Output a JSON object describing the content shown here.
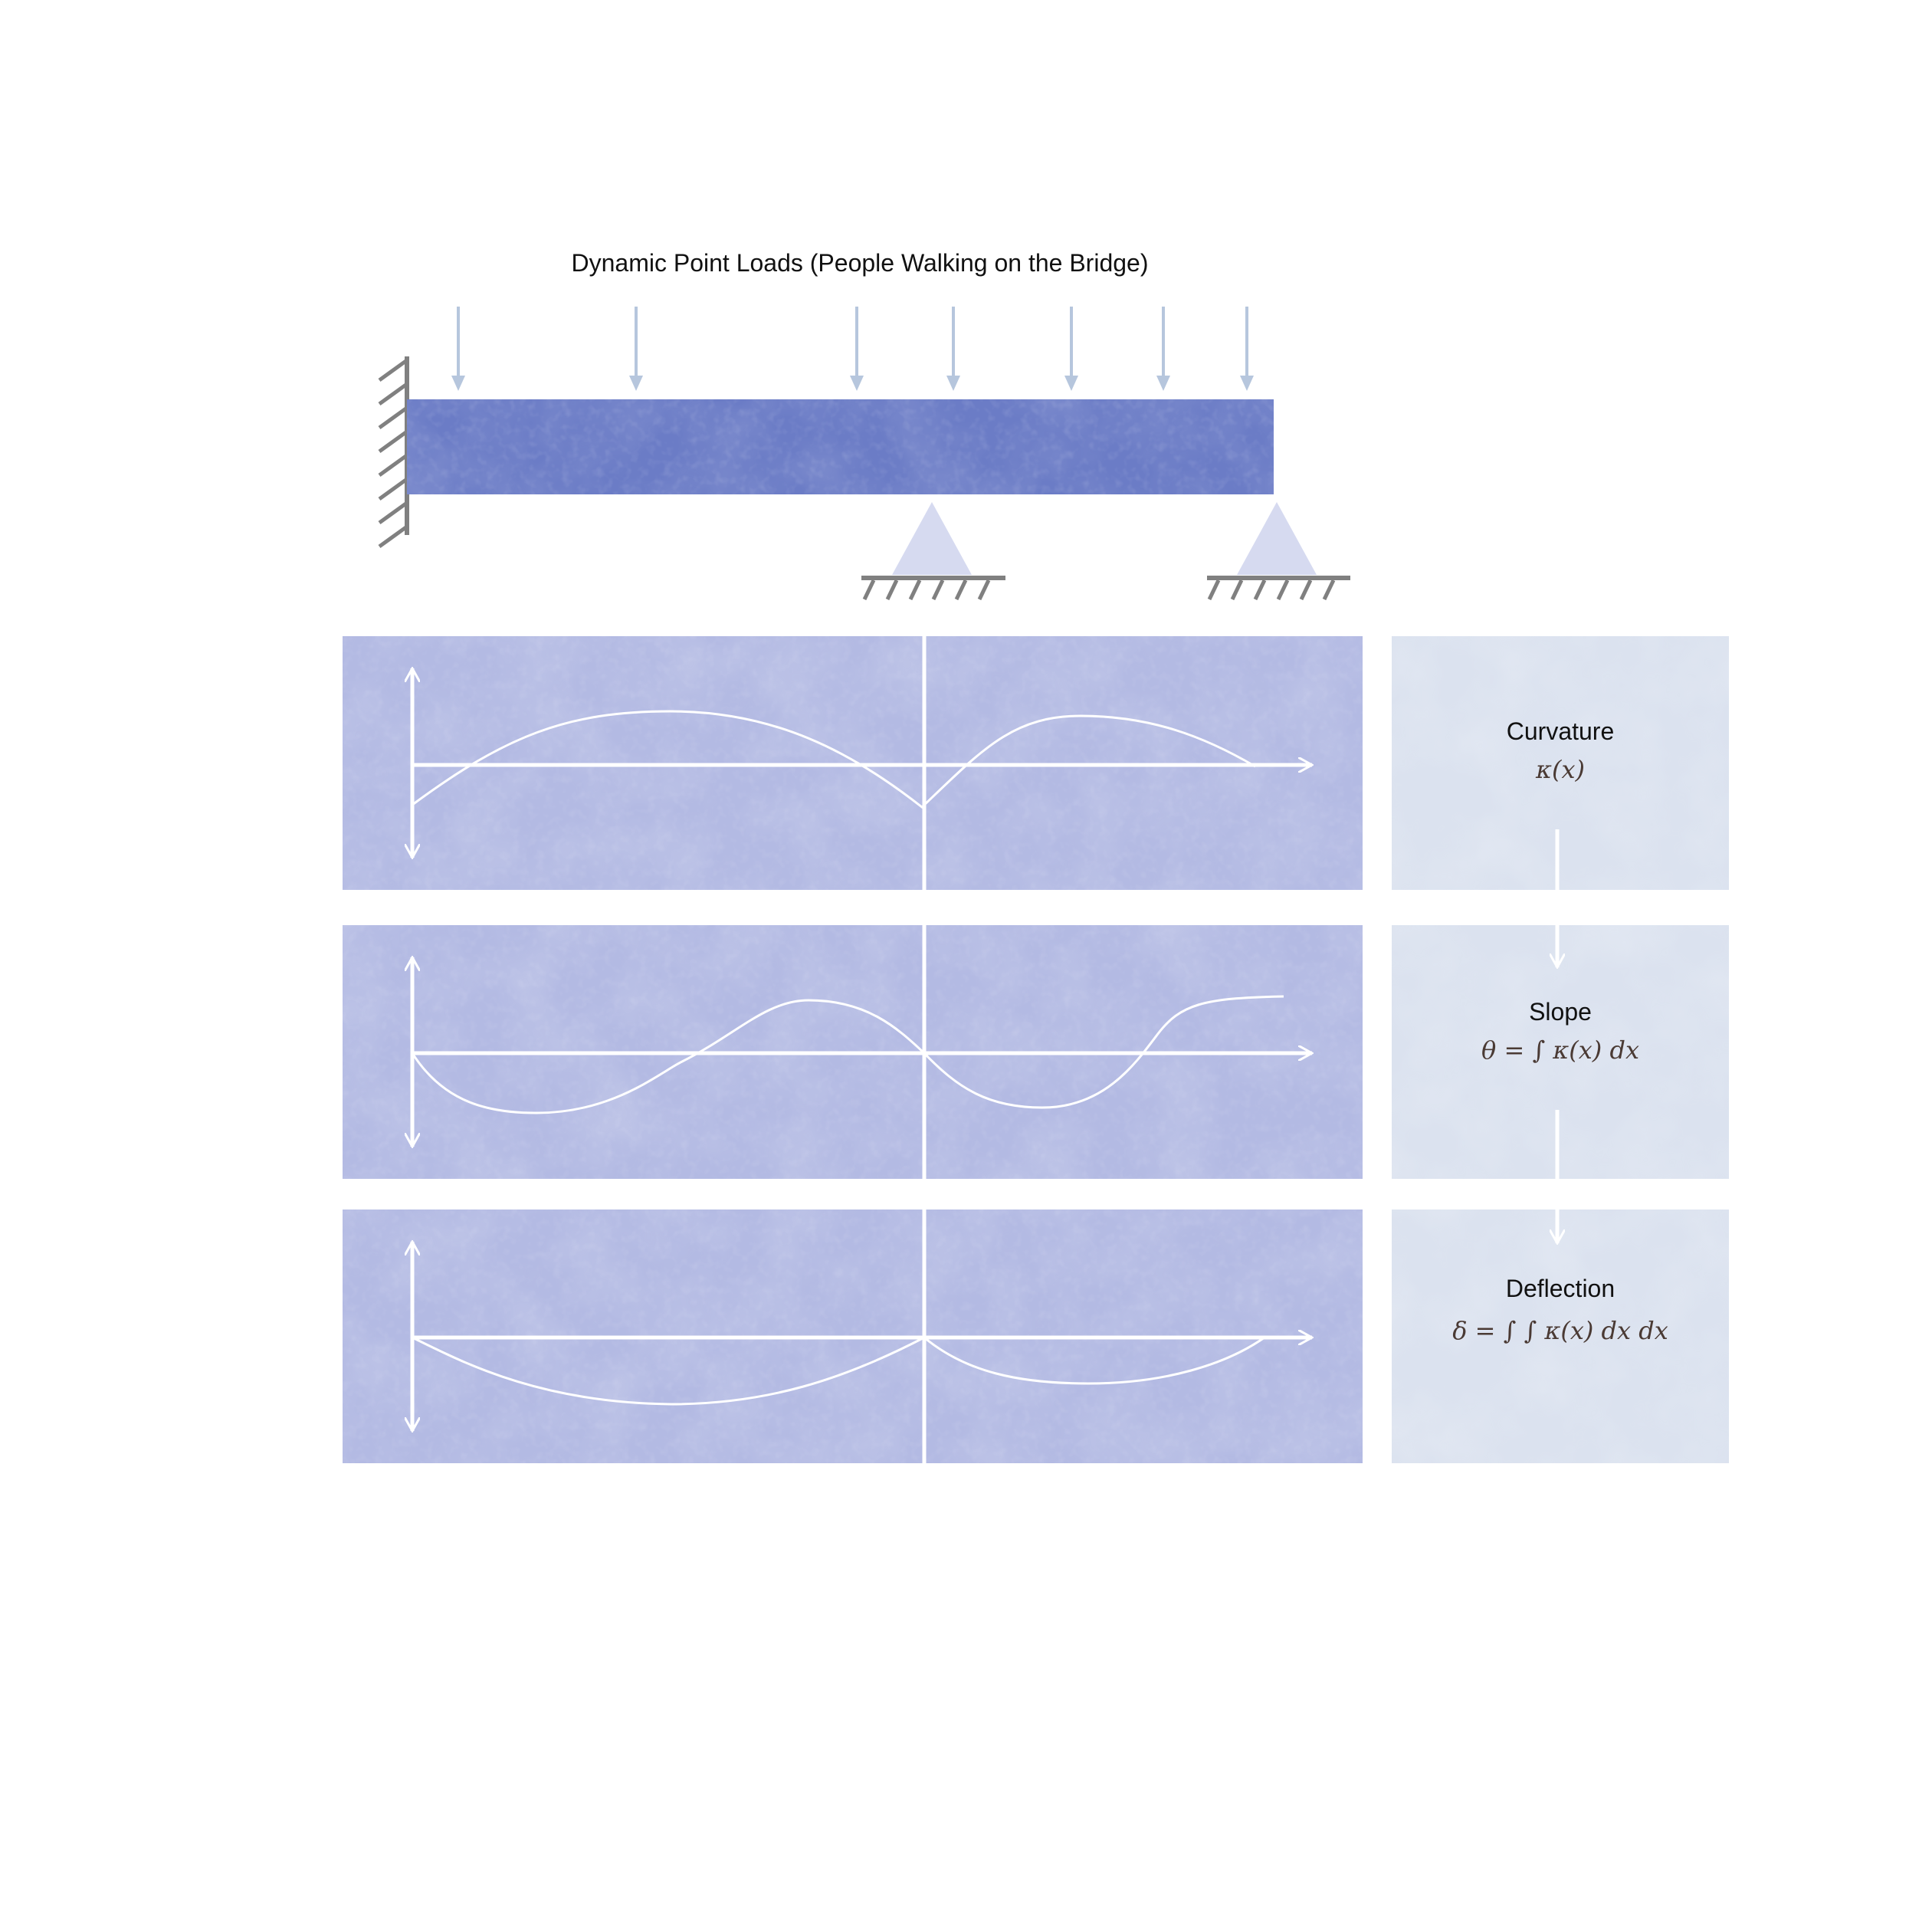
{
  "title": "Dynamic Point Loads (People Walking on the Bridge)",
  "load_arrow_count": 7,
  "panels": [
    {
      "id": "curvature",
      "label": "Curvature",
      "formula": "κ(x)"
    },
    {
      "id": "slope",
      "label": "Slope",
      "formula": "θ = ∫ κ(x) dx"
    },
    {
      "id": "deflection",
      "label": "Deflection",
      "formula": "δ = ∫ ∫ κ(x) dx dx"
    }
  ],
  "colors": {
    "beam": "#6b7cc6",
    "beam_texture": "#8b9ad6",
    "panel": "#b3bae3",
    "panel_texture": "#c7cdec",
    "label_panel": "#dbe2ef",
    "load_arrow": "#b6c6dd",
    "support": "#d6daf0",
    "ground": "#808080",
    "curve": "#ffffff",
    "text": "#111111",
    "formula": "#4a3a34"
  },
  "icons": {
    "fixed_support": "hatched-wall-icon",
    "pin_support": "triangle-support-icon",
    "load": "down-arrow-icon",
    "axis": "double-headed-arrow-icon"
  }
}
